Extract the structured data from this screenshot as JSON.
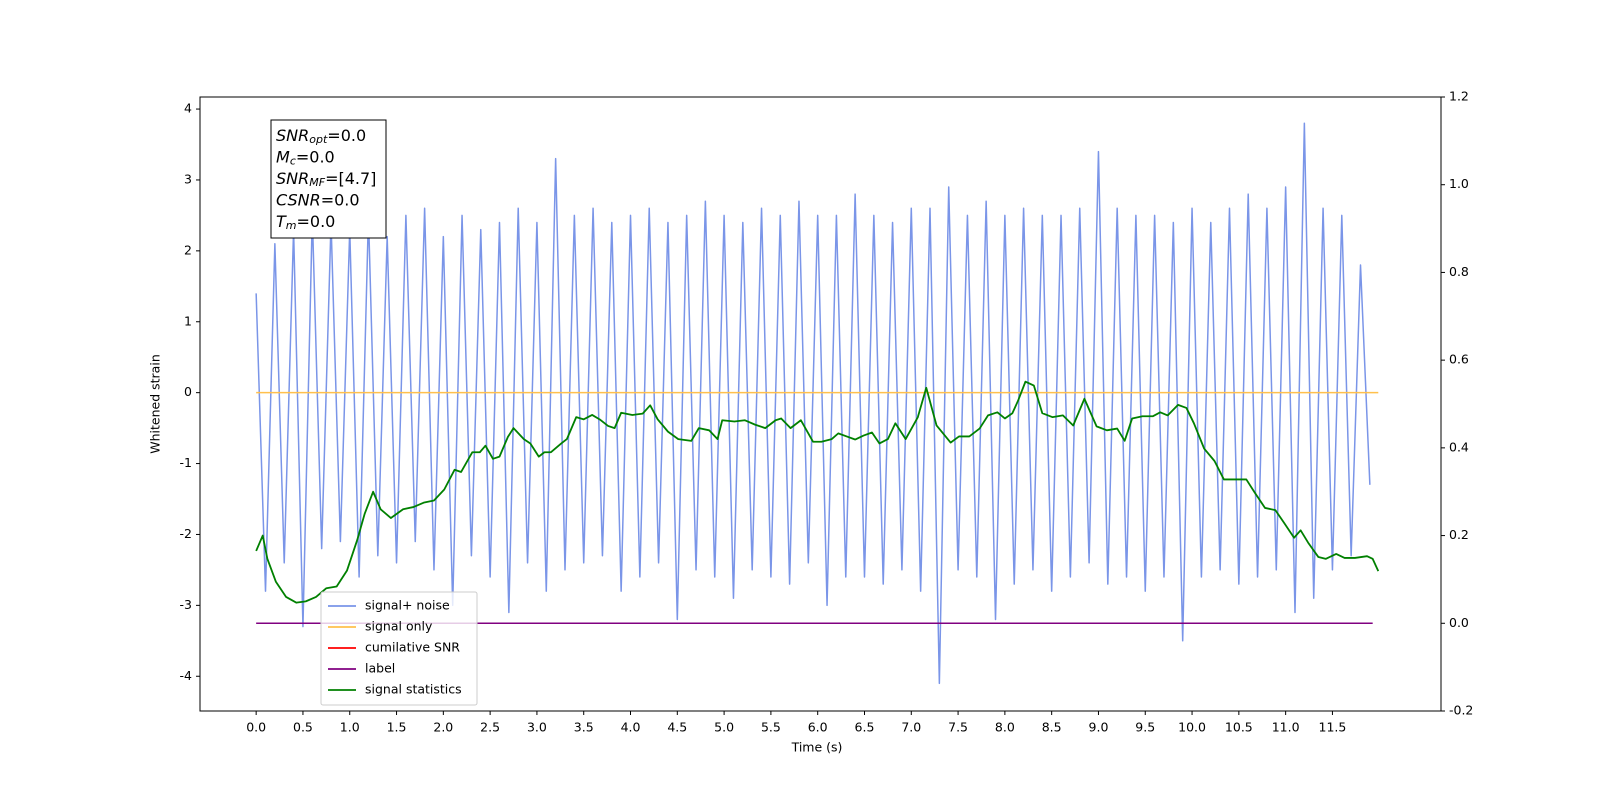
{
  "chart_data": {
    "type": "line",
    "xlabel": "Time (s)",
    "ylabel": "Whitened strain",
    "xlim": [
      -0.6,
      12.66
    ],
    "ylim": [
      -4.49,
      4.17
    ],
    "y2lim": [
      -0.2,
      1.2
    ],
    "xticks": [
      {
        "value": 0,
        "label": "0.0"
      },
      0.5,
      {
        "value": 1,
        "label": "1.0"
      },
      1.5,
      {
        "value": 2,
        "label": "2.0"
      },
      2.5,
      {
        "value": 3,
        "label": "3.0"
      },
      3.5,
      {
        "value": 4,
        "label": "4.0"
      },
      4.5,
      {
        "value": 5,
        "label": "5.0"
      },
      5.5,
      {
        "value": 6,
        "label": "6.0"
      },
      6.5,
      {
        "value": 7,
        "label": "7.0"
      },
      7.5,
      {
        "value": 8,
        "label": "8.0"
      },
      8.5,
      {
        "value": 9,
        "label": "9.0"
      },
      9.5,
      {
        "value": 10,
        "label": "10.0"
      },
      10.5,
      {
        "value": 11,
        "label": "11.0"
      },
      11.5
    ],
    "yticks": [
      -4,
      -3,
      -2,
      -1,
      0,
      1,
      2,
      3,
      4
    ],
    "y2ticks": [
      -0.2,
      {
        "value": 0,
        "label": "0.0"
      },
      0.2,
      0.4,
      0.6,
      0.8,
      {
        "value": 1,
        "label": "1.0"
      },
      1.2
    ],
    "grid": false,
    "legend": "lower left",
    "annotation": [
      {
        "main": "SNR",
        "sub": "opt",
        "rest": "=0.0"
      },
      {
        "main": "M",
        "sub": "c",
        "rest": "=0.0"
      },
      {
        "main": "SNR",
        "sub": "MF",
        "rest": "=[4.7]"
      },
      {
        "main": "CSNR",
        "rest": "=0.0"
      },
      {
        "main": "T",
        "sub": "m",
        "rest": "=0.0"
      }
    ],
    "series": [
      {
        "name": "signal+ noise",
        "color": "#7a95e8",
        "x": [
          0.0,
          0.1,
          0.2,
          0.3,
          0.4,
          0.5,
          0.6,
          0.7,
          0.8,
          0.9,
          1.0,
          1.1,
          1.2,
          1.3,
          1.4,
          1.5,
          1.6,
          1.7,
          1.8,
          1.9,
          2.0,
          2.1,
          2.2,
          2.3,
          2.4,
          2.5,
          2.6,
          2.7,
          2.8,
          2.9,
          3.0,
          3.1,
          3.2,
          3.3,
          3.4,
          3.5,
          3.6,
          3.7,
          3.8,
          3.9,
          4.0,
          4.1,
          4.2,
          4.3,
          4.4,
          4.5,
          4.6,
          4.7,
          4.8,
          4.9,
          5.0,
          5.1,
          5.2,
          5.3,
          5.4,
          5.5,
          5.6,
          5.7,
          5.8,
          5.9,
          6.0,
          6.1,
          6.2,
          6.3,
          6.4,
          6.5,
          6.6,
          6.7,
          6.8,
          6.9,
          7.0,
          7.1,
          7.2,
          7.3,
          7.4,
          7.5,
          7.6,
          7.7,
          7.8,
          7.9,
          8.0,
          8.1,
          8.2,
          8.3,
          8.4,
          8.5,
          8.6,
          8.7,
          8.8,
          8.9,
          9.0,
          9.1,
          9.2,
          9.3,
          9.4,
          9.5,
          9.6,
          9.7,
          9.8,
          9.9,
          10.0,
          10.1,
          10.2,
          10.3,
          10.4,
          10.5,
          10.6,
          10.7,
          10.8,
          10.9,
          11.0,
          11.1,
          11.2,
          11.3,
          11.4,
          11.5,
          11.6,
          11.7,
          11.8,
          11.9
        ],
        "values": [
          1.4,
          -2.8,
          2.1,
          -2.4,
          2.3,
          -3.3,
          2.5,
          -2.2,
          2.4,
          -2.1,
          2.3,
          -2.6,
          2.5,
          -2.3,
          2.2,
          -2.4,
          2.5,
          -2.1,
          2.6,
          -2.5,
          2.2,
          -3.0,
          2.5,
          -2.3,
          2.3,
          -2.6,
          2.4,
          -3.1,
          2.6,
          -2.4,
          2.4,
          -2.8,
          3.3,
          -2.5,
          2.5,
          -2.4,
          2.6,
          -2.3,
          2.4,
          -2.8,
          2.5,
          -2.6,
          2.6,
          -2.4,
          2.4,
          -3.2,
          2.5,
          -2.5,
          2.7,
          -2.6,
          2.5,
          -2.9,
          2.4,
          -2.5,
          2.6,
          -2.6,
          2.5,
          -2.7,
          2.7,
          -2.4,
          2.5,
          -3.0,
          2.5,
          -2.6,
          2.8,
          -2.6,
          2.5,
          -2.7,
          2.4,
          -2.5,
          2.6,
          -2.8,
          2.6,
          -4.1,
          2.9,
          -2.5,
          2.5,
          -2.6,
          2.7,
          -3.2,
          2.5,
          -2.7,
          2.6,
          -2.5,
          2.5,
          -2.8,
          2.5,
          -2.6,
          2.6,
          -2.4,
          3.4,
          -2.7,
          2.6,
          -2.6,
          2.5,
          -2.8,
          2.5,
          -2.6,
          2.4,
          -3.5,
          2.6,
          -2.6,
          2.4,
          -2.5,
          2.6,
          -2.7,
          2.8,
          -2.6,
          2.6,
          -2.5,
          2.9,
          -3.1,
          3.8,
          -2.9,
          2.6,
          -2.5,
          2.5,
          -2.3,
          1.8,
          -1.3
        ]
      },
      {
        "name": "signal only",
        "color": "#ffc04d",
        "x": [
          0.0,
          11.99
        ],
        "values": [
          0,
          0
        ]
      },
      {
        "name": "cumilative SNR",
        "color": "#ff0000",
        "x": [],
        "values": []
      },
      {
        "name": "label",
        "color": "#800080",
        "axis": "y2",
        "x": [
          0.0,
          11.93
        ],
        "values": [
          0,
          0
        ]
      },
      {
        "name": "signal statistics",
        "color": "#008000",
        "axis": "y2",
        "x": [
          0.0,
          0.07,
          0.12,
          0.21,
          0.32,
          0.43,
          0.53,
          0.64,
          0.75,
          0.86,
          0.97,
          1.08,
          1.16,
          1.25,
          1.33,
          1.44,
          1.57,
          1.68,
          1.79,
          1.9,
          2.01,
          2.12,
          2.19,
          2.31,
          2.39,
          2.45,
          2.53,
          2.6,
          2.69,
          2.75,
          2.86,
          2.93,
          3.02,
          3.08,
          3.15,
          3.26,
          3.32,
          3.42,
          3.5,
          3.59,
          3.67,
          3.76,
          3.83,
          3.9,
          4.02,
          4.13,
          4.21,
          4.29,
          4.4,
          4.51,
          4.65,
          4.73,
          4.84,
          4.93,
          4.98,
          5.11,
          5.22,
          5.33,
          5.44,
          5.55,
          5.61,
          5.71,
          5.82,
          5.95,
          6.04,
          6.15,
          6.22,
          6.31,
          6.4,
          6.49,
          6.58,
          6.66,
          6.75,
          6.83,
          6.94,
          7.07,
          7.16,
          7.27,
          7.42,
          7.51,
          7.62,
          7.73,
          7.82,
          7.92,
          8.0,
          8.08,
          8.14,
          8.22,
          8.31,
          8.4,
          8.51,
          8.62,
          8.73,
          8.85,
          8.98,
          9.09,
          9.2,
          9.28,
          9.36,
          9.47,
          9.58,
          9.66,
          9.74,
          9.85,
          9.94,
          10.02,
          10.13,
          10.24,
          10.34,
          10.45,
          10.58,
          10.67,
          10.78,
          10.89,
          10.98,
          11.09,
          11.16,
          11.24,
          11.35,
          11.43,
          11.54,
          11.63,
          11.74,
          11.87,
          11.93,
          11.99
        ],
        "values": [
          0.165,
          0.2,
          0.147,
          0.095,
          0.06,
          0.047,
          0.05,
          0.06,
          0.08,
          0.084,
          0.12,
          0.19,
          0.25,
          0.3,
          0.26,
          0.24,
          0.26,
          0.265,
          0.275,
          0.28,
          0.305,
          0.35,
          0.345,
          0.39,
          0.39,
          0.405,
          0.375,
          0.38,
          0.425,
          0.445,
          0.42,
          0.41,
          0.38,
          0.39,
          0.39,
          0.41,
          0.42,
          0.47,
          0.465,
          0.475,
          0.465,
          0.45,
          0.445,
          0.48,
          0.475,
          0.478,
          0.497,
          0.465,
          0.437,
          0.42,
          0.416,
          0.445,
          0.44,
          0.42,
          0.463,
          0.46,
          0.463,
          0.453,
          0.445,
          0.463,
          0.467,
          0.445,
          0.463,
          0.414,
          0.414,
          0.42,
          0.433,
          0.426,
          0.419,
          0.428,
          0.435,
          0.41,
          0.42,
          0.456,
          0.42,
          0.47,
          0.537,
          0.451,
          0.412,
          0.426,
          0.426,
          0.444,
          0.474,
          0.481,
          0.467,
          0.479,
          0.507,
          0.551,
          0.542,
          0.479,
          0.47,
          0.474,
          0.451,
          0.512,
          0.449,
          0.44,
          0.444,
          0.416,
          0.467,
          0.472,
          0.472,
          0.481,
          0.474,
          0.498,
          0.491,
          0.456,
          0.398,
          0.37,
          0.328,
          0.328,
          0.328,
          0.298,
          0.263,
          0.258,
          0.23,
          0.195,
          0.212,
          0.184,
          0.151,
          0.147,
          0.158,
          0.149,
          0.149,
          0.153,
          0.147,
          0.119
        ]
      }
    ]
  }
}
